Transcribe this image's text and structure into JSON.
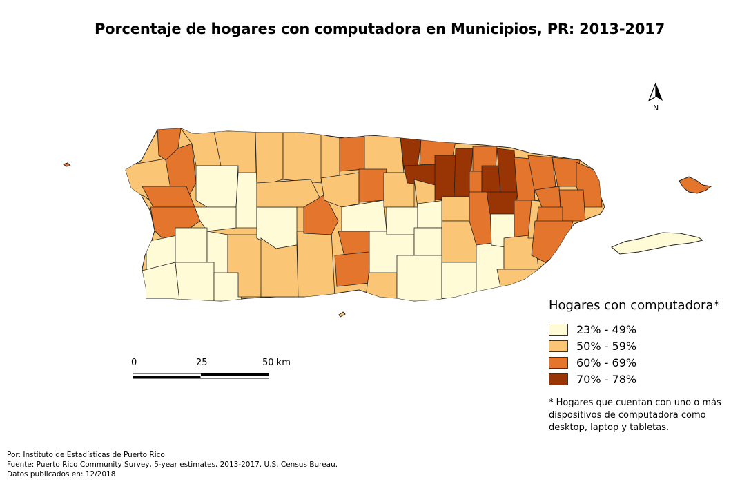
{
  "title": "Porcentaje de hogares con computadora en Municipios, PR: 2013-2017",
  "north_arrow": {
    "label": "N"
  },
  "legend": {
    "title": "Hogares con computadora*",
    "classes": [
      {
        "label": "23% - 49%",
        "color": "#fffbd6"
      },
      {
        "label": "50% - 59%",
        "color": "#fbc576"
      },
      {
        "label": "60% - 69%",
        "color": "#e3752d"
      },
      {
        "label": "70% - 78%",
        "color": "#993404"
      }
    ],
    "note": "* Hogares que cuentan con uno o más dispositivos de computadora como desktop, laptop y tabletas."
  },
  "scale_bar": {
    "labels": [
      "0",
      "25",
      "50 km"
    ]
  },
  "credits": {
    "author": "Por: Instituto de Estadísticas de Puerto Rico",
    "source": "Fuente: Puerto Rico Community Survey, 5-year estimates, 2013-2017. U.S. Census Bureau.",
    "published": "Datos publicados en: 12/2018"
  },
  "colors": {
    "border": "#222222",
    "background": "#ffffff"
  }
}
